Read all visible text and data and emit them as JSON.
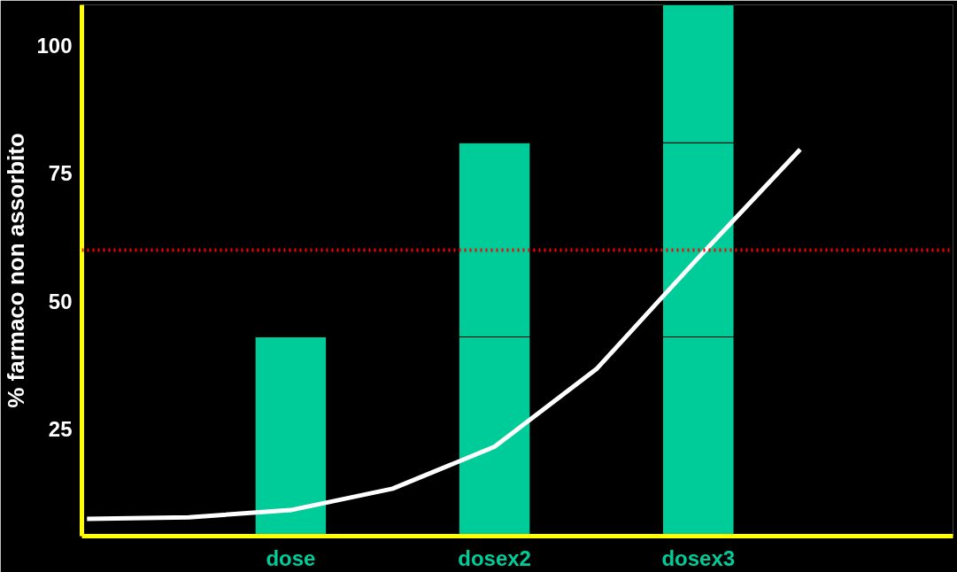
{
  "chart_data": {
    "type": "bar",
    "ylabel": "% farmaco non assorbito",
    "categories": [
      null,
      null,
      "dose",
      null,
      "dosex2",
      null,
      "dosex3",
      null,
      null
    ],
    "stacked": true,
    "series": [
      {
        "color": "#00cc99",
        "values": [
          null,
          null,
          43,
          null,
          43,
          null,
          43,
          null,
          null
        ]
      },
      {
        "color": "#00cc99",
        "values": [
          null,
          null,
          null,
          null,
          38,
          null,
          38,
          null,
          null
        ]
      },
      {
        "color": "#00cc99",
        "values": [
          null,
          null,
          null,
          null,
          null,
          null,
          27,
          null,
          null
        ]
      },
      {
        "type": "line",
        "color": "#ffffff",
        "values": [
          7.4,
          7.7,
          9.1,
          13.3,
          21.5,
          36.7,
          58.5,
          79.7,
          null
        ]
      }
    ],
    "ref_lines": [
      {
        "axis": "y",
        "value": 60,
        "color": "#ff0000",
        "line_style": "dotted"
      }
    ],
    "ylim": [
      4,
      108
    ],
    "yticks": [
      25,
      50,
      75,
      100
    ]
  }
}
